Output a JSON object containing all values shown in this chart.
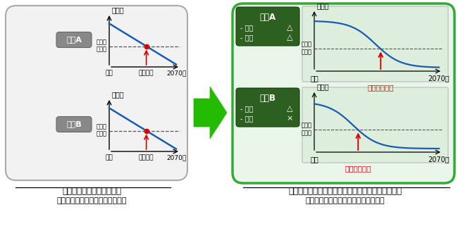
{
  "left_box_bg": "#f2f2f2",
  "left_box_border": "#aaaaaa",
  "right_box_bg": "#e8f5e9",
  "right_box_border": "#33aa33",
  "gray_label_bg": "#888888",
  "green_label_bg": "#2d6020",
  "line_color": "#1a5cb0",
  "dashed_color": "#555555",
  "red_color": "#dd0000",
  "green_arrow_color": "#22bb00",
  "sub_graph_bg": "#ddeedd",
  "white": "#ffffff",
  "black": "#000000",
  "bridge_a": "橋梁A",
  "bridge_b": "橋梁B",
  "kenzen": "健全度",
  "youhoshu": "要補修\nレベル",
  "genzi": "現在",
  "hoshu_jiki": "補修時期",
  "year": "2070年",
  "saiteki": "最適補修時期",
  "hibi": "- ひび",
  "hakuri": "- 剥離",
  "tri": "△",
  "cross": "×",
  "bottom_l1": "健全度から補修時期を推定",
  "bottom_l2": "同一健全度は同じ劣化速度と仮定",
  "bottom_r1": "損傷の種類から劣化進行を予測し、補修時期を予測",
  "bottom_r2": "インフラごとに異なる劣化速度を予測"
}
